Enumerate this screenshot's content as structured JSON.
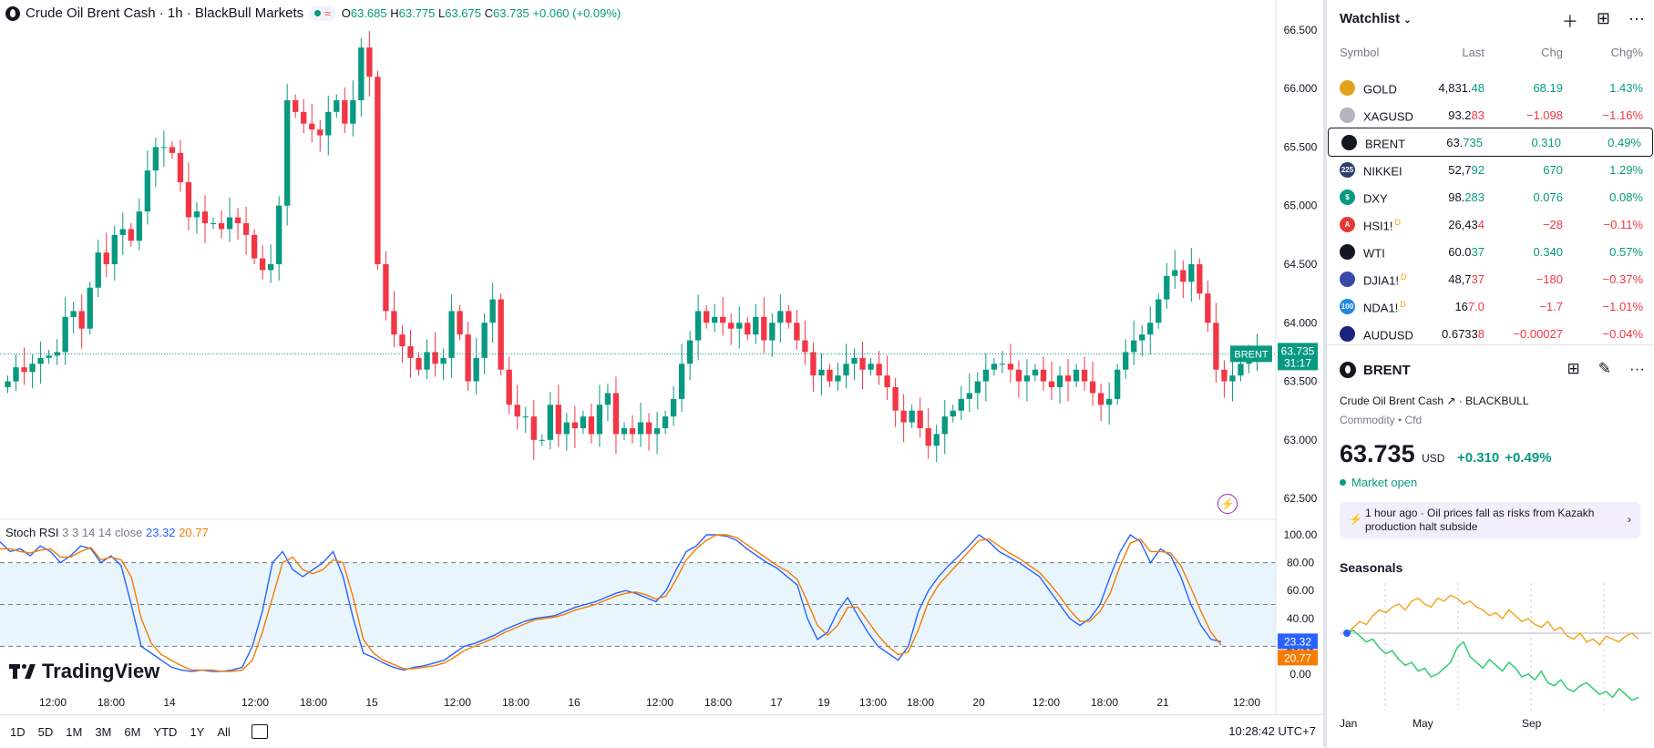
{
  "header": {
    "title": "Crude Oil Brent Cash · 1h · BlackBull Markets",
    "pill_icon": "≈",
    "ohlc": {
      "o_label": "O",
      "o": "63.685",
      "h_label": "H",
      "h": "63.775",
      "l_label": "L",
      "l": "63.675",
      "c_label": "C",
      "c": "63.735",
      "change": "+0.060 (+0.09%)"
    }
  },
  "chart_data": [
    {
      "type": "candlestick",
      "title": "Crude Oil Brent Cash · 1h · BlackBull Markets",
      "y_ticks": [
        "66.500",
        "66.000",
        "65.500",
        "65.000",
        "64.500",
        "64.000",
        "63.500",
        "63.000",
        "62.500"
      ],
      "ylim": [
        62.4,
        66.6
      ],
      "x_ticks": [
        "12:00",
        "18:00",
        "14",
        "12:00",
        "18:00",
        "15",
        "12:00",
        "18:00",
        "16",
        "12:00",
        "18:00",
        "17",
        "19",
        "13:00",
        "18:00",
        "20",
        "12:00",
        "18:00",
        "21",
        "12:00"
      ],
      "last_price": {
        "symbol": "BRENT",
        "value": "63.735",
        "countdown": "31:17"
      },
      "closes": [
        63.5,
        63.62,
        63.58,
        63.65,
        63.7,
        63.72,
        63.75,
        64.05,
        64.1,
        63.95,
        64.3,
        64.6,
        64.5,
        64.75,
        64.8,
        64.7,
        64.95,
        65.3,
        65.5,
        65.5,
        65.45,
        65.2,
        64.9,
        64.95,
        64.85,
        64.85,
        64.8,
        64.9,
        64.85,
        64.75,
        64.55,
        64.45,
        64.5,
        65.0,
        65.9,
        65.8,
        65.7,
        65.65,
        65.6,
        65.8,
        65.9,
        65.7,
        65.9,
        66.35,
        66.1,
        64.5,
        64.1,
        63.9,
        63.8,
        63.7,
        63.6,
        63.75,
        63.65,
        63.7,
        64.1,
        63.9,
        63.5,
        63.7,
        64.0,
        64.2,
        63.6,
        63.3,
        63.2,
        63.2,
        63.0,
        63.0,
        63.3,
        63.05,
        63.15,
        63.1,
        63.2,
        63.05,
        63.3,
        63.4,
        63.05,
        63.1,
        63.05,
        63.15,
        63.05,
        63.1,
        63.2,
        63.35,
        63.65,
        63.85,
        64.1,
        64.0,
        64.05,
        64.0,
        63.95,
        64.0,
        63.9,
        64.05,
        63.85,
        64.0,
        64.1,
        64.0,
        63.85,
        63.75,
        63.55,
        63.6,
        63.5,
        63.55,
        63.65,
        63.7,
        63.6,
        63.65,
        63.55,
        63.45,
        63.25,
        63.15,
        63.25,
        63.1,
        62.95,
        63.05,
        63.2,
        63.25,
        63.35,
        63.4,
        63.5,
        63.6,
        63.65,
        63.65,
        63.6,
        63.5,
        63.55,
        63.6,
        63.5,
        63.45,
        63.55,
        63.5,
        63.6,
        63.5,
        63.4,
        63.3,
        63.35,
        63.6,
        63.75,
        63.85,
        63.9,
        64.0,
        64.2,
        64.4,
        64.45,
        64.35,
        64.5,
        64.25,
        64.0,
        63.6,
        63.5,
        63.55,
        63.65,
        63.7,
        63.735
      ],
      "xlabel": "",
      "ylabel": ""
    },
    {
      "type": "line",
      "title": "Stoch RSI 3 3 14 14 close",
      "series": [
        {
          "name": "K",
          "values": [
            95,
            88,
            90,
            85,
            92,
            88,
            80,
            85,
            92,
            90,
            80,
            85,
            78,
            50,
            20,
            15,
            10,
            5,
            3,
            2,
            3,
            2,
            2,
            3,
            5,
            20,
            45,
            80,
            88,
            75,
            70,
            75,
            80,
            88,
            70,
            40,
            15,
            12,
            8,
            5,
            3,
            5,
            6,
            8,
            10,
            15,
            20,
            22,
            25,
            28,
            32,
            35,
            38,
            40,
            41,
            42,
            45,
            48,
            50,
            52,
            55,
            58,
            60,
            58,
            55,
            52,
            60,
            75,
            88,
            92,
            100,
            100,
            99,
            96,
            90,
            85,
            80,
            76,
            70,
            64,
            40,
            25,
            30,
            45,
            55,
            42,
            30,
            20,
            15,
            10,
            20,
            45,
            60,
            70,
            78,
            85,
            92,
            100,
            95,
            88,
            84,
            80,
            75,
            70,
            60,
            50,
            40,
            35,
            40,
            50,
            70,
            88,
            100,
            95,
            80,
            90,
            85,
            70,
            50,
            35,
            25,
            23.32
          ]
        },
        {
          "name": "D",
          "values": [
            90,
            90,
            88,
            87,
            89,
            90,
            84,
            84,
            88,
            91,
            82,
            84,
            82,
            70,
            40,
            22,
            14,
            10,
            6,
            3,
            3,
            3,
            2,
            2,
            3,
            10,
            30,
            55,
            80,
            84,
            75,
            72,
            75,
            82,
            80,
            55,
            25,
            15,
            10,
            7,
            4,
            4,
            5,
            6,
            8,
            12,
            17,
            20,
            23,
            26,
            30,
            33,
            36,
            39,
            40,
            41,
            43,
            46,
            48,
            50,
            53,
            56,
            58,
            59,
            57,
            54,
            56,
            68,
            82,
            90,
            96,
            100,
            100,
            98,
            93,
            88,
            83,
            78,
            74,
            68,
            52,
            35,
            28,
            35,
            48,
            48,
            38,
            28,
            20,
            14,
            16,
            32,
            52,
            64,
            72,
            80,
            88,
            96,
            97,
            92,
            87,
            83,
            78,
            73,
            65,
            56,
            46,
            38,
            38,
            45,
            58,
            78,
            94,
            97,
            88,
            88,
            87,
            78,
            62,
            45,
            30,
            20.77
          ]
        }
      ],
      "y_ticks": [
        "100.00",
        "80.00",
        "60.00",
        "40.00",
        "20.00",
        "0.00"
      ],
      "ylim": [
        0,
        100
      ],
      "band": [
        20,
        80
      ],
      "k_label": "23.32",
      "d_label": "20.77",
      "colors": {
        "k": "#2962ff",
        "d": "#f57c00"
      },
      "xlabel": "",
      "ylabel": ""
    },
    {
      "type": "line",
      "title": "Seasonals",
      "x_ticks": [
        "Jan",
        "May",
        "Sep"
      ],
      "series": [
        {
          "values": [
            0,
            2,
            4,
            3,
            6,
            8,
            7,
            9,
            10,
            8,
            11,
            12,
            10,
            9,
            12,
            11,
            13,
            12,
            10,
            11,
            9,
            8,
            6,
            7,
            5,
            8,
            6,
            4,
            5,
            3,
            2,
            4,
            1,
            2,
            -1,
            -2,
            0,
            -3,
            -2,
            -4,
            -1,
            -2,
            -3,
            -1,
            0,
            -2
          ]
        },
        {
          "values": [
            0,
            1,
            -1,
            -3,
            -2,
            -5,
            -7,
            -6,
            -9,
            -11,
            -10,
            -13,
            -12,
            -15,
            -14,
            -12,
            -10,
            -5,
            -3,
            -8,
            -10,
            -12,
            -9,
            -11,
            -13,
            -10,
            -12,
            -15,
            -14,
            -16,
            -13,
            -17,
            -18,
            -16,
            -19,
            -20,
            -18,
            -17,
            -19,
            -21,
            -20,
            -22,
            -19,
            -21,
            -23,
            -22
          ]
        }
      ],
      "colors": {
        "a": "#f5a623",
        "b": "#2ecc71"
      }
    }
  ],
  "rsi_legend": {
    "name": "Stoch RSI",
    "params": "3 3 14 14 close",
    "k": "23.32",
    "d": "20.77"
  },
  "logo": "TradingView",
  "bottom": {
    "ranges": [
      "1D",
      "5D",
      "1M",
      "3M",
      "6M",
      "YTD",
      "1Y",
      "All"
    ],
    "clock": "10:28:42 UTC+7"
  },
  "watchlist": {
    "title": "Watchlist",
    "columns": {
      "symbol": "Symbol",
      "last": "Last",
      "chg": "Chg",
      "pct": "Chg%"
    },
    "rows": [
      {
        "sym": "GOLD",
        "badge": "",
        "last_a": "4,831.",
        "last_b": "48",
        "dir": "pos",
        "chg": "68.19",
        "pct": "1.43%",
        "icon": "gold-icon",
        "color": "#e0a31b",
        "ico": ""
      },
      {
        "sym": "XAGUSD",
        "badge": "",
        "last_a": "93.2",
        "last_b": "83",
        "dir": "neg",
        "chg": "−1.098",
        "pct": "−1.16%",
        "icon": "silver-icon",
        "color": "#b2b5be",
        "ico": ""
      },
      {
        "sym": "BRENT",
        "badge": "",
        "last_a": "63.",
        "last_b": "735",
        "dir": "pos",
        "chg": "0.310",
        "pct": "0.49%",
        "icon": "oil-drop-icon",
        "color": "#131722",
        "ico": ""
      },
      {
        "sym": "NIKKEI",
        "badge": "",
        "last_a": "52,7",
        "last_b": "92",
        "dir": "pos",
        "chg": "670",
        "pct": "1.29%",
        "icon": "nikkei-icon",
        "color": "#2b3f6b",
        "ico": "225"
      },
      {
        "sym": "DXY",
        "badge": "",
        "last_a": "98.",
        "last_b": "283",
        "dir": "pos",
        "chg": "0.076",
        "pct": "0.08%",
        "icon": "dollar-icon",
        "color": "#089981",
        "ico": "$"
      },
      {
        "sym": "HSI1!",
        "badge": "D",
        "last_a": "26,43",
        "last_b": "4",
        "dir": "neg",
        "chg": "−28",
        "pct": "−0.11%",
        "icon": "hsi-icon",
        "color": "#e53935",
        "ico": "A"
      },
      {
        "sym": "WTI",
        "badge": "",
        "last_a": "60.0",
        "last_b": "37",
        "dir": "pos",
        "chg": "0.340",
        "pct": "0.57%",
        "icon": "oil-drop-icon",
        "color": "#131722",
        "ico": ""
      },
      {
        "sym": "DJIA1!",
        "badge": "D",
        "last_a": "48,7",
        "last_b": "37",
        "dir": "neg",
        "chg": "−180",
        "pct": "−0.37%",
        "icon": "us-flag-icon",
        "color": "#3949ab",
        "ico": ""
      },
      {
        "sym": "NDA1!",
        "badge": "D",
        "last_a": "16",
        "last_b": "7.0",
        "dir": "neg",
        "chg": "−1.7",
        "pct": "−1.01%",
        "icon": "nasdaq-icon",
        "color": "#1e88e5",
        "ico": "100"
      },
      {
        "sym": "AUDUSD",
        "badge": "",
        "last_a": "0.6733",
        "last_b": "8",
        "dir": "neg",
        "chg": "−0.00027",
        "pct": "−0.04%",
        "icon": "au-flag-icon",
        "color": "#1a237e",
        "ico": ""
      }
    ]
  },
  "detail": {
    "symbol": "BRENT",
    "name": "Crude Oil Brent Cash",
    "exchange": "BLACKBULL",
    "category": "Commodity • Cfd",
    "price": "63.735",
    "currency": "USD",
    "change": "+0.310",
    "change_pct": "+0.49%",
    "status": "Market open",
    "news": "1 hour ago · Oil prices fall as risks from Kazakh production halt subside",
    "seasonals_title": "Seasonals"
  }
}
